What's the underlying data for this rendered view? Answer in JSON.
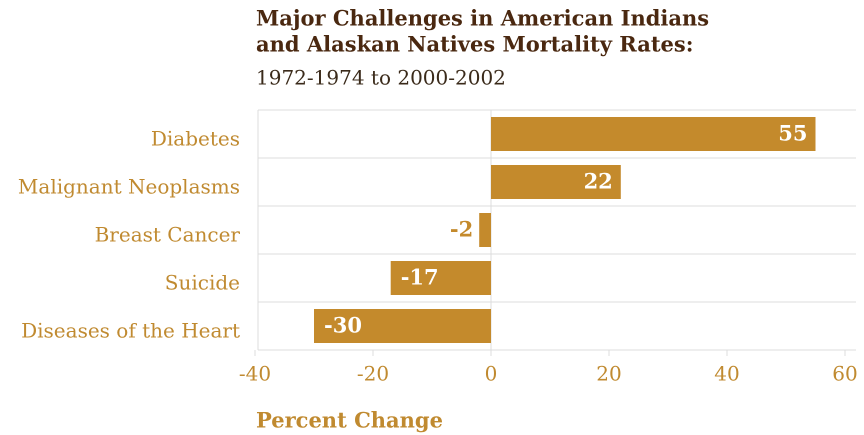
{
  "chart_data": {
    "type": "hbar",
    "title": [
      "Major Challenges in American Indians",
      "and Alaskan Natives Mortality Rates:"
    ],
    "subtitle": "1972-1974 to 2000-2002",
    "x_label": "Percent Change",
    "categories": [
      "Diabetes",
      "Malignant Neoplasms",
      "Breast Cancer",
      "Suicide",
      "Diseases of the Heart"
    ],
    "values": [
      55,
      22,
      -2,
      -17,
      -30
    ],
    "color": "#c48a2c",
    "xlim": [
      -40,
      60
    ],
    "xticks": [
      -40,
      -20,
      0,
      20,
      40,
      60
    ],
    "grid": true
  }
}
